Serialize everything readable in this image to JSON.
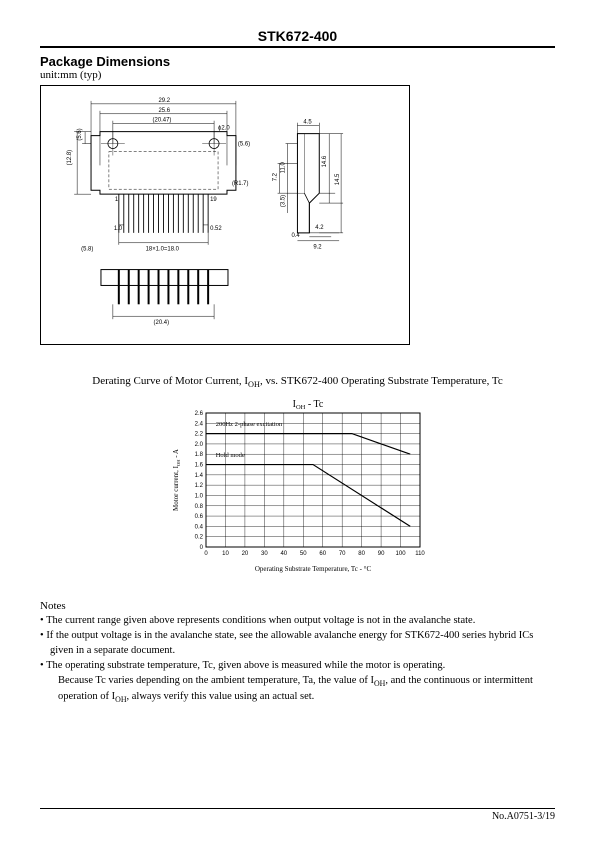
{
  "header": {
    "part_number": "STK672-400"
  },
  "section": {
    "title": "Package Dimensions",
    "unit": "unit:mm (typ)"
  },
  "package_diagram": {
    "front": {
      "width_outer": "29.2",
      "width_inner": "25.6",
      "width_holes": "(20.47)",
      "hole_dia": "ϕ2.0",
      "height": "(12.8)",
      "hole_y": "(5.6)",
      "hole_edge": "(5.6)",
      "corner_r": "(R1.7)",
      "pin1": "1",
      "pin_last": "19",
      "pin_left": "1.0",
      "pin_right": "0.52",
      "pins_span": "18×1.0=18.0",
      "side_w": "(5.8)",
      "bottom_w": "(20.4)"
    },
    "side": {
      "top_w": "4.5",
      "h1": "14.6",
      "h2": "14.5",
      "h3": "11.0",
      "h4": "7.2",
      "lead_h": "(3.5)",
      "foot_t": "0.4",
      "foot_w": "4.2",
      "base_w": "9.2"
    }
  },
  "curve_caption_parts": {
    "prefix": "Derating Curve of Motor Current, I",
    "sub1": "OH",
    "mid": ", vs. STK672-400 Operating Substrate Temperature, Tc"
  },
  "chart": {
    "title_prefix": "I",
    "title_sub": "OH",
    "title_suffix": " - Tc",
    "xlabel": "Operating Substrate Temperature, Tc - °C",
    "ylabel_prefix": "Motor current, I",
    "ylabel_sub": "OH",
    "ylabel_suffix": " - A",
    "xlim": [
      0,
      110
    ],
    "ylim": [
      0,
      2.6
    ],
    "xtick_step": 10,
    "ytick_step": 0.2,
    "xtick_labels": [
      "0",
      "10",
      "20",
      "30",
      "40",
      "50",
      "60",
      "70",
      "80",
      "90",
      "100",
      "110"
    ],
    "ytick_labels": [
      "0",
      "0.2",
      "0.4",
      "0.6",
      "0.8",
      "1.0",
      "1.2",
      "1.4",
      "1.6",
      "1.8",
      "2.0",
      "2.2",
      "2.4",
      "2.6"
    ],
    "grid_color": "#000000",
    "background_color": "#ffffff",
    "line_color": "#000000",
    "line_width": 1.2,
    "tick_fontsize": 6,
    "label_fontsize": 7,
    "title_fontsize": 10,
    "annotations": [
      {
        "tc": 5,
        "ioh": 2.35,
        "text": "200Hz 2-phase excitation"
      },
      {
        "tc": 5,
        "ioh": 1.75,
        "text": "Hold mode"
      }
    ],
    "series": [
      {
        "name": "200Hz 2-phase excitation",
        "points": [
          [
            0,
            2.2
          ],
          [
            75,
            2.2
          ],
          [
            105,
            1.8
          ]
        ]
      },
      {
        "name": "Hold mode",
        "points": [
          [
            0,
            1.6
          ],
          [
            55,
            1.6
          ],
          [
            105,
            0.4
          ]
        ]
      }
    ]
  },
  "notes": {
    "title": "Notes",
    "items": [
      "The current range given above represents conditions when output voltage is not in the avalanche state.",
      "If the output voltage is in the avalanche state, see the allowable avalanche energy for STK672-400 series hybrid ICs given in a separate document.",
      "The operating substrate temperature, Tc, given above is measured while the motor is operating."
    ],
    "tail_prefix": "Because Tc varies depending on the ambient temperature, Ta, the value of I",
    "tail_sub": "OH",
    "tail_mid": ", and the continuous or intermittent operation of I",
    "tail_sub2": "OH",
    "tail_suffix": ", always verify this value using an actual set."
  },
  "footer": {
    "docno": "No.A0751-3/19"
  }
}
